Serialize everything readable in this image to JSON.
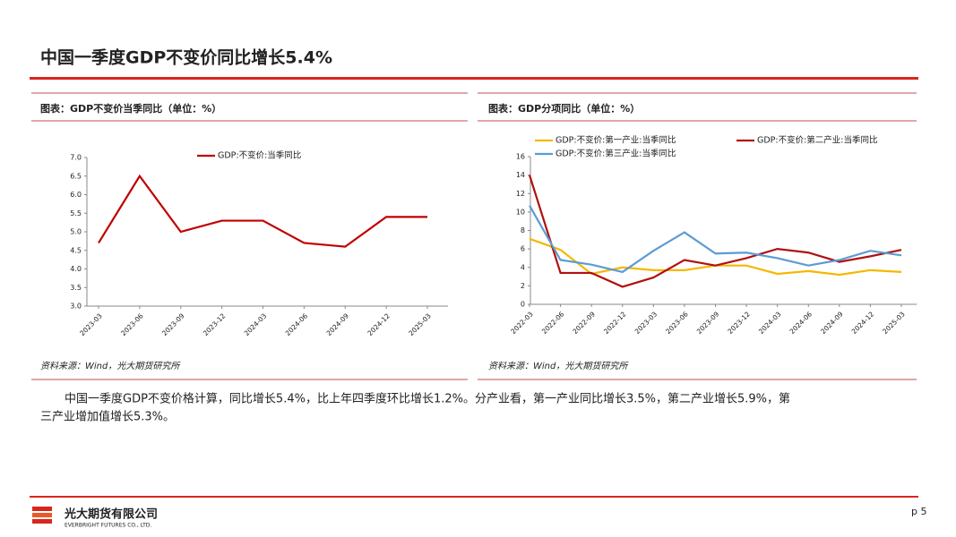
{
  "header": {
    "title": "中国一季度GDP不变价同比增长5.4%"
  },
  "chart_data": [
    {
      "type": "line",
      "title": "图表：GDP不变价当季同比（单位：%）",
      "source": "资料来源：Wind，光大期货研究所",
      "categories": [
        "2023-03",
        "2023-06",
        "2023-09",
        "2023-12",
        "2024-03",
        "2024-06",
        "2024-09",
        "2024-12",
        "2025-03"
      ],
      "series": [
        {
          "name": "GDP:不变价:当季同比",
          "color": "#c00000",
          "values": [
            4.7,
            6.5,
            5.0,
            5.3,
            5.3,
            4.7,
            4.6,
            5.4,
            5.4
          ]
        }
      ],
      "ylim": [
        3,
        7
      ],
      "yticks": [
        {
          "value": 3,
          "label": "3.0"
        },
        {
          "value": 3.5,
          "label": "3.5"
        },
        {
          "value": 4,
          "label": "4.0"
        },
        {
          "value": 4.5,
          "label": "4.5"
        },
        {
          "value": 5,
          "label": "5.0"
        },
        {
          "value": 5.5,
          "label": "5.5"
        },
        {
          "value": 6,
          "label": "6.0"
        },
        {
          "value": 6.5,
          "label": "6.5"
        },
        {
          "value": 7,
          "label": "7.0"
        }
      ]
    },
    {
      "type": "line",
      "title": "图表：GDP分项同比（单位：%）",
      "source": "资料来源：Wind，光大期货研究所",
      "categories": [
        "2022-03",
        "2022-06",
        "2022-09",
        "2022-12",
        "2023-03",
        "2023-06",
        "2023-09",
        "2023-12",
        "2024-03",
        "2024-06",
        "2024-09",
        "2024-12",
        "2025-03"
      ],
      "series": [
        {
          "name": "GDP:不变价:第一产业:当季同比",
          "color": "#f5b800",
          "values": [
            7.1,
            5.9,
            3.3,
            4.0,
            3.7,
            3.7,
            4.2,
            4.2,
            3.3,
            3.6,
            3.2,
            3.7,
            3.5
          ]
        },
        {
          "name": "GDP:不变价:第二产业:当季同比",
          "color": "#b01010",
          "values": [
            14.0,
            3.4,
            3.4,
            1.9,
            2.9,
            4.8,
            4.2,
            5.0,
            6.0,
            5.6,
            4.6,
            5.2,
            5.9
          ]
        },
        {
          "name": "GDP:不变价:第三产业:当季同比",
          "color": "#5b9bd5",
          "values": [
            10.7,
            4.8,
            4.3,
            3.5,
            5.8,
            7.8,
            5.5,
            5.6,
            5.0,
            4.2,
            4.8,
            5.8,
            5.3
          ]
        }
      ],
      "ylim": [
        0,
        16
      ],
      "yticks": [
        0,
        2,
        4,
        6,
        8,
        10,
        12,
        14,
        16
      ]
    }
  ],
  "paragraph": [
    "中国一季度GDP不变价格计算，同比增长5.4%，比上年四季度环比增长1.2%。分产业看，第一产业同比增长3.5%，第二产业增长5.9%，第",
    "三产业增加值增长5.3%。"
  ],
  "footer": {
    "company": "光大期货有限公司",
    "company_en": "EVERBRIGHT FUTURES CO., LTD.",
    "page": "p 5"
  }
}
